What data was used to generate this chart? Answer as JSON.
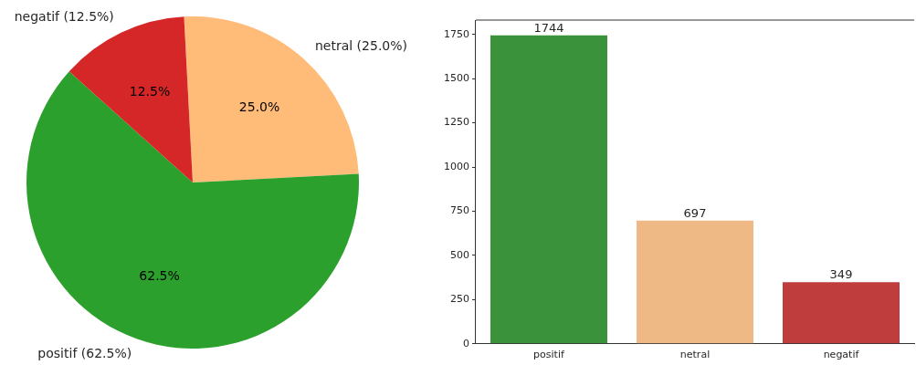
{
  "chart_data": [
    {
      "type": "pie",
      "categories": [
        "netral (25.0%)",
        "positif (62.5%)",
        "negatif (12.5%)"
      ],
      "values": [
        25.0,
        62.5,
        12.5
      ],
      "value_labels": [
        "25.0%",
        "62.5%",
        "12.5%"
      ],
      "colors": [
        "#ffbb78",
        "#2ca02c",
        "#d62728"
      ],
      "legend": false
    },
    {
      "type": "bar",
      "categories": [
        "positif",
        "netral",
        "negatif"
      ],
      "values": [
        1744,
        697,
        349
      ],
      "colors": [
        "#3a923a",
        "#efb986",
        "#c03d3e"
      ],
      "ylim": [
        0,
        1831
      ],
      "yticks": [
        0,
        250,
        500,
        750,
        1000,
        1250,
        1500,
        1750
      ],
      "data_labels": true,
      "grid": false,
      "legend": false
    }
  ]
}
